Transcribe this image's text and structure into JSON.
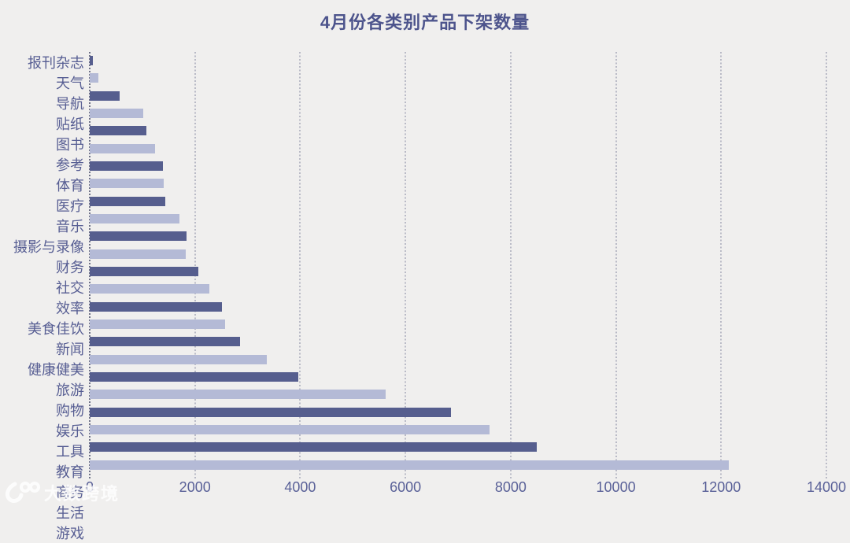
{
  "chart_data": {
    "type": "bar",
    "orientation": "horizontal",
    "title": "4月份各类别产品下架数量",
    "categories": [
      "报刊杂志",
      "天气",
      "导航",
      "贴纸",
      "图书",
      "参考",
      "体育",
      "医疗",
      "音乐",
      "摄影与录像",
      "财务",
      "社交",
      "效率",
      "美食佳饮",
      "新闻",
      "健康健美",
      "旅游",
      "购物",
      "娱乐",
      "工具",
      "教育",
      "商务",
      "生活",
      "游戏"
    ],
    "values": [
      65,
      165,
      570,
      1010,
      1070,
      1240,
      1390,
      1400,
      1435,
      1710,
      1835,
      1820,
      2060,
      2270,
      2520,
      2580,
      2850,
      3370,
      3960,
      5620,
      6860,
      7600,
      8500,
      12150
    ],
    "xlabel": "",
    "ylabel": "",
    "xlim": [
      0,
      14000
    ],
    "x_ticks": [
      "0",
      "2000",
      "4000",
      "6000",
      "8000",
      "10000",
      "12000",
      "14000"
    ],
    "legend": "none",
    "grid": "vertical dotted gridlines at each x tick",
    "bar_color_rule": "rows alternate: odd rows dark, even rows light, top row dark"
  },
  "watermark": {
    "text": "大数跨境"
  },
  "colors": {
    "background": "#f0efee",
    "bar_dark": "#565e8e",
    "bar_light": "#b4bad6",
    "title_text": "#4d548c",
    "category_text": "#575e93",
    "tick_text": "#5a6198",
    "gridline": "#b9bac6",
    "axis_line": "#6e7187",
    "watermark_text": "#ffffff"
  }
}
